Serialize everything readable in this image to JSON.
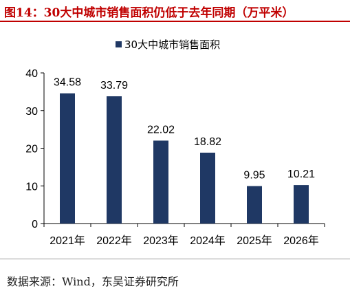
{
  "figure": {
    "title": "图14：30大中城市销售面积仍低于去年同期（万平米）",
    "source": "数据来源：Wind，东吴证券研究所"
  },
  "colors": {
    "bar": "#1f3864",
    "accent": "#c00000"
  },
  "chart_data": {
    "type": "bar",
    "categories": [
      "2021年",
      "2022年",
      "2023年",
      "2024年",
      "2025年",
      "2026年"
    ],
    "series": [
      {
        "name": "30大中城市销售面积",
        "values": [
          34.58,
          33.79,
          22.02,
          18.82,
          9.95,
          10.21
        ]
      }
    ],
    "data_labels": [
      "34.58",
      "33.79",
      "22.02",
      "18.82",
      "9.95",
      "10.21"
    ],
    "ylim": [
      0,
      40
    ],
    "yticks": [
      0,
      10,
      20,
      30,
      40
    ],
    "legend_position": "top-center",
    "grid": false
  }
}
